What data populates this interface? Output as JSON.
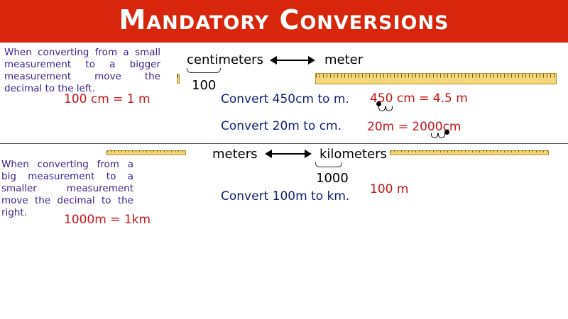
{
  "title": "Mandatory Conversions",
  "top": {
    "note": "When converting from a small measurement to a bigger measurement move the decimal to the left.",
    "rule": "100 cm = 1 m",
    "from_unit": "centimeters",
    "to_unit": "meter",
    "factor": "100",
    "problem1": "Convert 450cm to m.",
    "answer1": "450 cm = 4.5 m",
    "problem2": "Convert 20m to cm.",
    "answer2_left": "20m = ",
    "answer2_digits": "20",
    "answer2_zeros": "00",
    "answer2_unit": "cm"
  },
  "bottom": {
    "note": "When converting from a big measurement to a smaller measurement move the decimal to the right.",
    "rule": "1000m = 1km",
    "from_unit": "meters",
    "to_unit": "kilometers",
    "factor": "1000",
    "problem1": "Convert 100m to km.",
    "answer1": "100 m"
  },
  "colors": {
    "title_bar": "#d7260c",
    "note": "#3a1f8c",
    "answer": "#c8141a",
    "problem": "#0f1f7a"
  }
}
